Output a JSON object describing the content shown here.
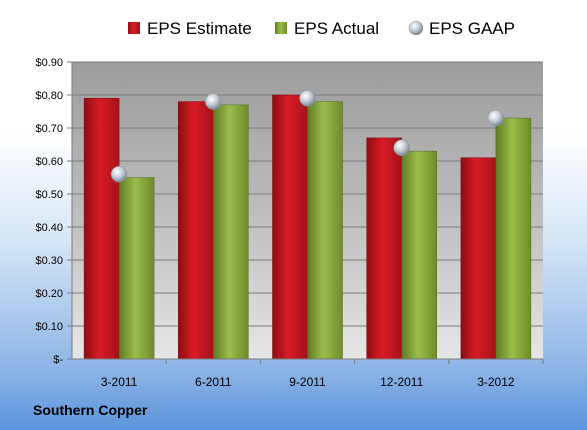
{
  "brand": "Southern Copper",
  "colors": {
    "estimate": "#c8141e",
    "actual": "#86a83a",
    "gaap": "#b5c0cc"
  },
  "chart_data": {
    "type": "bar",
    "categories": [
      "3-2011",
      "6-2011",
      "9-2011",
      "12-2011",
      "3-2012"
    ],
    "series": [
      {
        "name": "EPS Estimate",
        "values": [
          0.79,
          0.78,
          0.8,
          0.67,
          0.61
        ]
      },
      {
        "name": "EPS Actual",
        "values": [
          0.55,
          0.77,
          0.78,
          0.63,
          0.73
        ]
      },
      {
        "name": "EPS GAAP",
        "values": [
          0.56,
          0.78,
          0.79,
          0.64,
          0.73
        ]
      }
    ],
    "ylim": [
      0,
      0.9
    ],
    "yticks": [
      0,
      0.1,
      0.2,
      0.3,
      0.4,
      0.5,
      0.6,
      0.7,
      0.8,
      0.9
    ],
    "ytick_labels": [
      "$-",
      "$0.10",
      "$0.20",
      "$0.30",
      "$0.40",
      "$0.50",
      "$0.60",
      "$0.70",
      "$0.80",
      "$0.90"
    ],
    "legend_position": "top",
    "grid": true
  }
}
